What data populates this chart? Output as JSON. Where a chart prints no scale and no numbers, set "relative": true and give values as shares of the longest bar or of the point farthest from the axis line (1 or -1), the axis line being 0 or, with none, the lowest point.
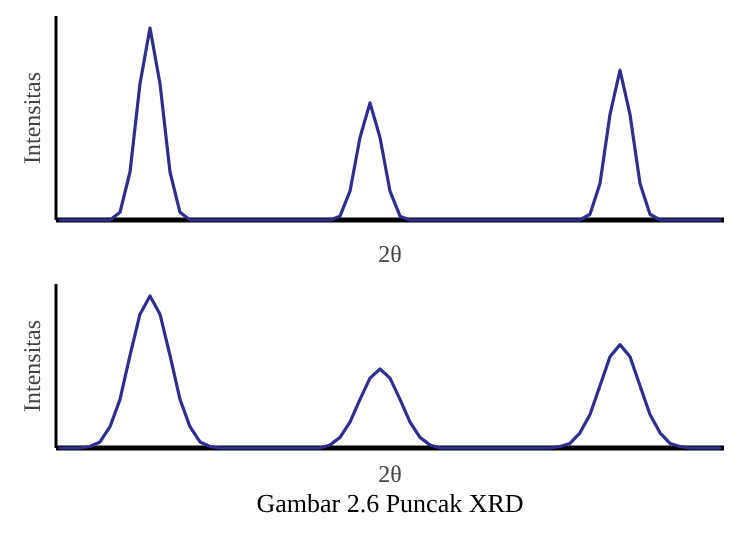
{
  "chart_data": [
    {
      "type": "line",
      "relative": true,
      "xlabel": "2θ",
      "ylabel": "Intensitas",
      "categories": [
        null,
        null,
        null,
        null,
        null,
        null,
        null,
        null,
        null,
        null,
        null,
        null,
        null,
        null,
        null,
        null,
        null,
        null,
        null,
        null,
        null,
        null,
        null,
        null,
        null,
        null,
        null,
        null,
        null,
        null,
        null,
        null,
        null,
        null,
        null,
        null,
        null,
        null,
        null,
        null,
        null,
        null,
        null,
        null,
        null,
        null,
        null,
        null,
        null,
        null,
        null,
        null,
        null,
        null,
        null,
        null,
        null,
        null,
        null,
        null,
        null,
        null,
        null,
        null,
        null,
        null,
        null
      ],
      "series": [
        {
          "color": "#2e2e8c",
          "values": [
            0,
            0,
            0,
            0,
            0,
            0,
            0.04,
            0.25,
            0.71,
            1,
            0.71,
            0.25,
            0.04,
            0,
            0,
            0,
            0,
            0,
            0,
            0,
            0,
            0,
            0,
            0,
            0,
            0,
            0,
            0,
            0.02,
            0.15,
            0.43,
            0.61,
            0.43,
            0.15,
            0.02,
            0,
            0,
            0,
            0,
            0,
            0,
            0,
            0,
            0,
            0,
            0,
            0,
            0,
            0,
            0,
            0,
            0,
            0,
            0.03,
            0.19,
            0.55,
            0.78,
            0.55,
            0.19,
            0.03,
            0,
            0,
            0,
            0,
            0,
            0,
            0
          ]
        }
      ]
    },
    {
      "type": "line",
      "relative": true,
      "xlabel": "2θ",
      "ylabel": "Intensitas",
      "annotations": [
        "Gambar 2.6 Puncak XRD"
      ],
      "categories": [
        null,
        null,
        null,
        null,
        null,
        null,
        null,
        null,
        null,
        null,
        null,
        null,
        null,
        null,
        null,
        null,
        null,
        null,
        null,
        null,
        null,
        null,
        null,
        null,
        null,
        null,
        null,
        null,
        null,
        null,
        null,
        null,
        null,
        null,
        null,
        null,
        null,
        null,
        null,
        null,
        null,
        null,
        null,
        null,
        null,
        null,
        null,
        null,
        null,
        null,
        null,
        null,
        null,
        null,
        null,
        null,
        null,
        null,
        null,
        null,
        null,
        null,
        null,
        null,
        null,
        null,
        null
      ],
      "series": [
        {
          "color": "#2e2e8c",
          "values": [
            0,
            0,
            0,
            0.01,
            0.04,
            0.14,
            0.32,
            0.61,
            0.88,
            1,
            0.88,
            0.61,
            0.32,
            0.14,
            0.04,
            0.01,
            0,
            0,
            0,
            0,
            0,
            0,
            0,
            0,
            0,
            0,
            0,
            0.02,
            0.07,
            0.17,
            0.32,
            0.46,
            0.52,
            0.46,
            0.32,
            0.17,
            0.07,
            0.02,
            0,
            0,
            0,
            0,
            0,
            0,
            0,
            0,
            0,
            0,
            0,
            0,
            0.01,
            0.03,
            0.1,
            0.22,
            0.41,
            0.6,
            0.68,
            0.6,
            0.41,
            0.22,
            0.1,
            0.03,
            0.01,
            0,
            0,
            0,
            0
          ]
        }
      ]
    }
  ]
}
